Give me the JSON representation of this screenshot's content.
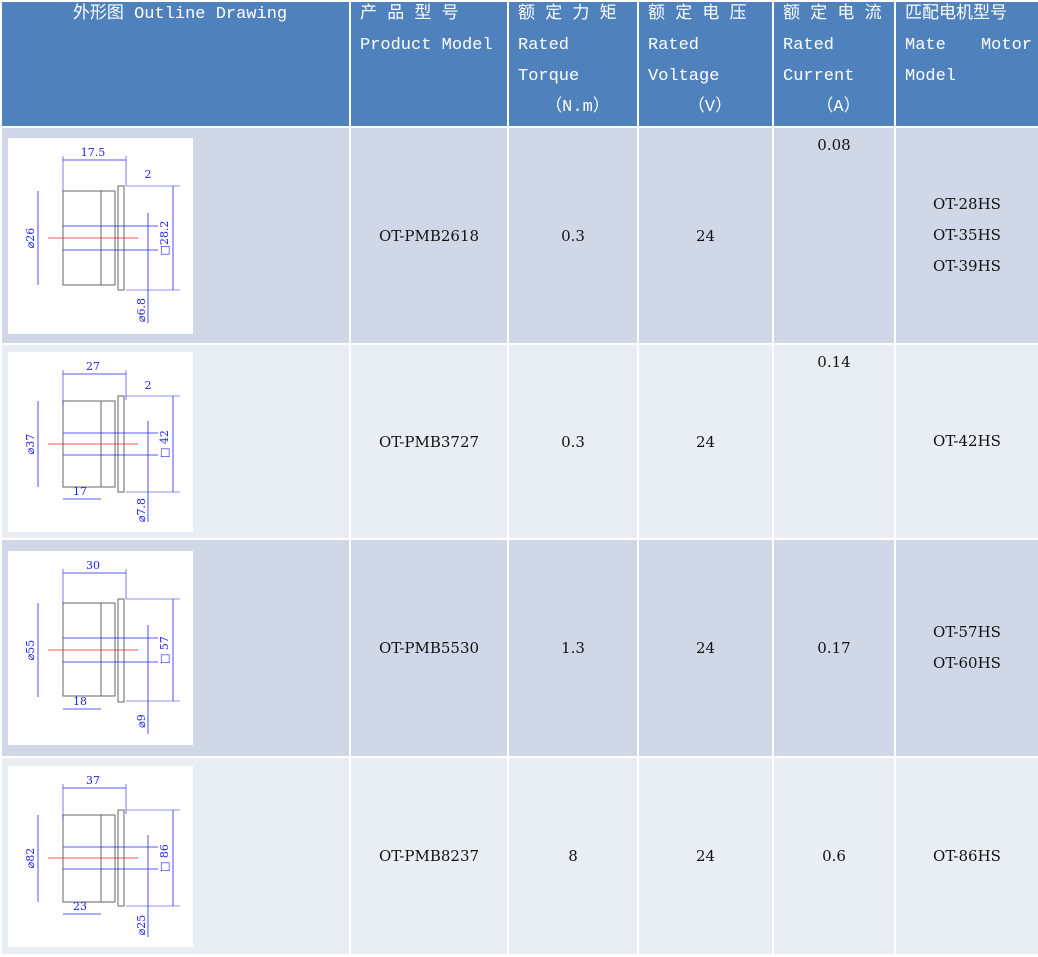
{
  "header": {
    "outline": "外形图  Outline Drawing",
    "model": [
      "产 品 型 号",
      "Product Model"
    ],
    "torque": [
      "额 定 力 矩",
      "Rated",
      "Torque",
      "（N.m）"
    ],
    "voltage": [
      "额 定 电 压",
      "Rated",
      "Voltage",
      "（V）"
    ],
    "current": [
      "额 定 电 流",
      "Rated",
      "Current",
      "（A）"
    ],
    "mate": [
      "匹配电机型号",
      "Mate",
      "Motor",
      "Model"
    ]
  },
  "colors": {
    "header": "#4f81bd",
    "row_odd": "#d0d8e8",
    "row_even": "#e9edf4",
    "dim": "#2222ee",
    "center": "#ee2222"
  },
  "rows": [
    {
      "model": "OT-PMB2618",
      "torque": "0.3",
      "voltage": "24",
      "current": "0.08",
      "current_pos": "top",
      "mate": [
        "OT-28HS",
        "OT-35HS",
        "OT-39HS"
      ],
      "drawing": {
        "length": "17.5",
        "flange": "2",
        "diameter": "⌀26",
        "square": "□28.2",
        "shaft": "⌀6.8",
        "body": ""
      }
    },
    {
      "model": "OT-PMB3727",
      "torque": "0.3",
      "voltage": "24",
      "current": "0.14",
      "current_pos": "top",
      "mate": [
        "OT-42HS"
      ],
      "drawing": {
        "length": "27",
        "flange": "2",
        "diameter": "⌀37",
        "square": "□ 42",
        "shaft": "⌀7.8",
        "body": "17"
      }
    },
    {
      "model": "OT-PMB5530",
      "torque": "1.3",
      "voltage": "24",
      "current": "0.17",
      "current_pos": "middle",
      "mate": [
        "OT-57HS",
        "OT-60HS"
      ],
      "drawing": {
        "length": "30",
        "flange": "",
        "diameter": "⌀55",
        "square": "□ 57",
        "shaft": "⌀9",
        "body": "18"
      }
    },
    {
      "model": "OT-PMB8237",
      "torque": "8",
      "voltage": "24",
      "current": "0.6",
      "current_pos": "middle",
      "mate": [
        "OT-86HS"
      ],
      "drawing": {
        "length": "37",
        "flange": "",
        "diameter": "⌀82",
        "square": "□ 86",
        "shaft": "⌀25",
        "body": "23"
      }
    }
  ]
}
